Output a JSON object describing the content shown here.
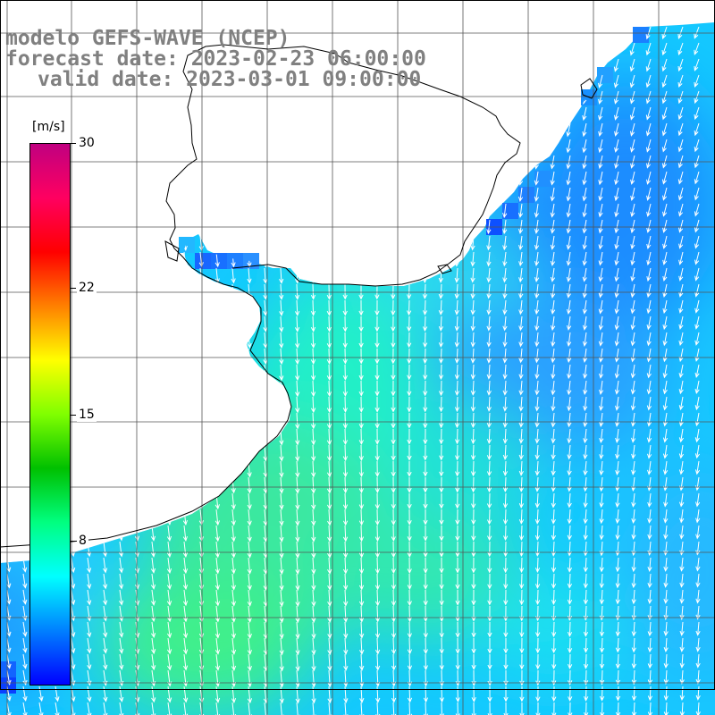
{
  "header": {
    "model_line": "modelo GEFS-WAVE (NCEP)",
    "forecast_line": "forecast date: 2023-02-23 06:00:00",
    "valid_line": "valid date: 2023-03-01 09:00:00"
  },
  "colorbar": {
    "unit": "[m/s]",
    "min": 0,
    "max": 30,
    "tick_labels": [
      "30",
      "22",
      "15",
      "8"
    ],
    "tick_values": [
      30,
      22,
      15,
      8
    ],
    "colors": [
      "#0000ff",
      "#0080ff",
      "#00ffff",
      "#00ff80",
      "#00c000",
      "#80ff00",
      "#ffff00",
      "#ff8000",
      "#ff0000",
      "#ff0060",
      "#c00080"
    ]
  },
  "map": {
    "graticule": true,
    "land_color": "#ffffff",
    "coastline_color": "#000000",
    "arrow_color": "#ffffff",
    "field": "wind speed and direction"
  }
}
